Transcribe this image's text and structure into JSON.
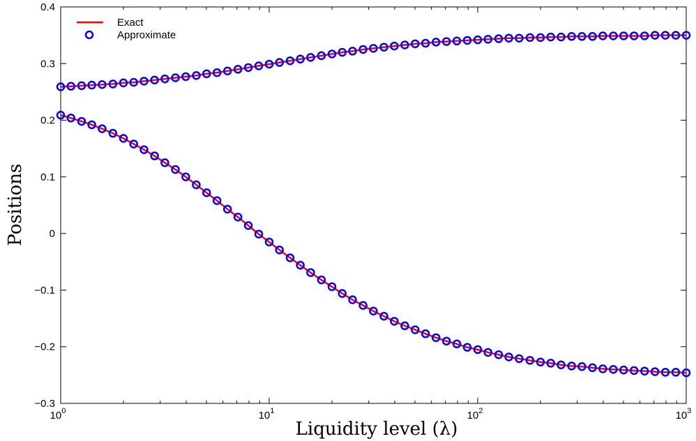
{
  "chart_data": {
    "type": "line",
    "xscale": "log",
    "xlim": [
      1,
      1000
    ],
    "ylim": [
      -0.3,
      0.4
    ],
    "xlabel": "Liquidity level (λ)",
    "ylabel": "Positions",
    "grid": false,
    "legend_position": "top-left",
    "x_ticks": [
      {
        "value": 1,
        "base": "10",
        "exp": "0"
      },
      {
        "value": 10,
        "base": "10",
        "exp": "1"
      },
      {
        "value": 100,
        "base": "10",
        "exp": "2"
      },
      {
        "value": 1000,
        "base": "10",
        "exp": "3"
      }
    ],
    "y_ticks": [
      {
        "value": 0.4,
        "label": "0.4"
      },
      {
        "value": 0.3,
        "label": "0.3"
      },
      {
        "value": 0.2,
        "label": "0.2"
      },
      {
        "value": 0.1,
        "label": "0.1"
      },
      {
        "value": 0.0,
        "label": "0"
      },
      {
        "value": -0.1,
        "label": "−0.1"
      },
      {
        "value": -0.2,
        "label": "−0.2"
      },
      {
        "value": -0.3,
        "label": "−0.3"
      }
    ],
    "x": [
      1.0,
      1.12,
      1.26,
      1.41,
      1.58,
      1.78,
      2.0,
      2.24,
      2.51,
      2.82,
      3.16,
      3.55,
      3.98,
      4.47,
      5.01,
      5.62,
      6.31,
      7.08,
      7.94,
      8.91,
      10.0,
      11.2,
      12.6,
      14.1,
      15.8,
      17.8,
      20.0,
      22.4,
      25.1,
      28.2,
      31.6,
      35.5,
      39.8,
      44.7,
      50.1,
      56.2,
      63.1,
      70.8,
      79.4,
      89.1,
      100,
      112,
      126,
      141,
      158,
      178,
      200,
      224,
      251,
      282,
      316,
      355,
      398,
      447,
      501,
      562,
      631,
      708,
      794,
      891,
      1000
    ],
    "series": [
      {
        "name": "Exact",
        "style": "line",
        "color": "#ff0000",
        "values_upper": [
          0.259,
          0.26,
          0.261,
          0.262,
          0.263,
          0.264,
          0.266,
          0.267,
          0.269,
          0.271,
          0.273,
          0.275,
          0.277,
          0.279,
          0.282,
          0.284,
          0.287,
          0.29,
          0.293,
          0.296,
          0.299,
          0.302,
          0.305,
          0.308,
          0.311,
          0.314,
          0.317,
          0.32,
          0.322,
          0.325,
          0.327,
          0.329,
          0.331,
          0.333,
          0.335,
          0.336,
          0.338,
          0.339,
          0.34,
          0.341,
          0.342,
          0.343,
          0.344,
          0.345,
          0.345,
          0.346,
          0.346,
          0.347,
          0.347,
          0.348,
          0.348,
          0.348,
          0.349,
          0.349,
          0.349,
          0.349,
          0.349,
          0.35,
          0.35,
          0.35,
          0.35
        ],
        "values_lower": [
          0.209,
          0.204,
          0.198,
          0.192,
          0.185,
          0.177,
          0.168,
          0.158,
          0.148,
          0.137,
          0.125,
          0.113,
          0.1,
          0.086,
          0.072,
          0.058,
          0.043,
          0.029,
          0.014,
          -0.001,
          -0.015,
          -0.029,
          -0.043,
          -0.056,
          -0.069,
          -0.082,
          -0.094,
          -0.106,
          -0.117,
          -0.127,
          -0.137,
          -0.146,
          -0.155,
          -0.163,
          -0.17,
          -0.177,
          -0.184,
          -0.19,
          -0.195,
          -0.201,
          -0.205,
          -0.21,
          -0.214,
          -0.218,
          -0.221,
          -0.224,
          -0.227,
          -0.229,
          -0.232,
          -0.234,
          -0.235,
          -0.237,
          -0.239,
          -0.24,
          -0.241,
          -0.242,
          -0.243,
          -0.244,
          -0.245,
          -0.245,
          -0.246
        ]
      },
      {
        "name": "Approximate",
        "style": "markers",
        "marker": "circle",
        "color": "#0000ff",
        "values_upper": [
          0.259,
          0.26,
          0.261,
          0.262,
          0.263,
          0.264,
          0.266,
          0.267,
          0.269,
          0.271,
          0.273,
          0.275,
          0.277,
          0.279,
          0.282,
          0.284,
          0.287,
          0.29,
          0.293,
          0.296,
          0.299,
          0.302,
          0.305,
          0.308,
          0.311,
          0.314,
          0.317,
          0.32,
          0.322,
          0.325,
          0.327,
          0.329,
          0.331,
          0.333,
          0.335,
          0.336,
          0.338,
          0.339,
          0.34,
          0.341,
          0.342,
          0.343,
          0.344,
          0.345,
          0.345,
          0.346,
          0.346,
          0.347,
          0.347,
          0.348,
          0.348,
          0.348,
          0.349,
          0.349,
          0.349,
          0.349,
          0.349,
          0.35,
          0.35,
          0.35,
          0.35
        ],
        "values_lower": [
          0.209,
          0.204,
          0.198,
          0.192,
          0.185,
          0.177,
          0.168,
          0.158,
          0.148,
          0.137,
          0.125,
          0.113,
          0.1,
          0.086,
          0.072,
          0.058,
          0.043,
          0.029,
          0.014,
          -0.001,
          -0.015,
          -0.029,
          -0.043,
          -0.056,
          -0.069,
          -0.082,
          -0.094,
          -0.106,
          -0.117,
          -0.127,
          -0.137,
          -0.146,
          -0.155,
          -0.163,
          -0.17,
          -0.177,
          -0.184,
          -0.19,
          -0.195,
          -0.201,
          -0.205,
          -0.21,
          -0.214,
          -0.218,
          -0.221,
          -0.224,
          -0.227,
          -0.229,
          -0.232,
          -0.234,
          -0.235,
          -0.237,
          -0.239,
          -0.24,
          -0.241,
          -0.242,
          -0.243,
          -0.244,
          -0.245,
          -0.245,
          -0.246
        ]
      }
    ]
  }
}
